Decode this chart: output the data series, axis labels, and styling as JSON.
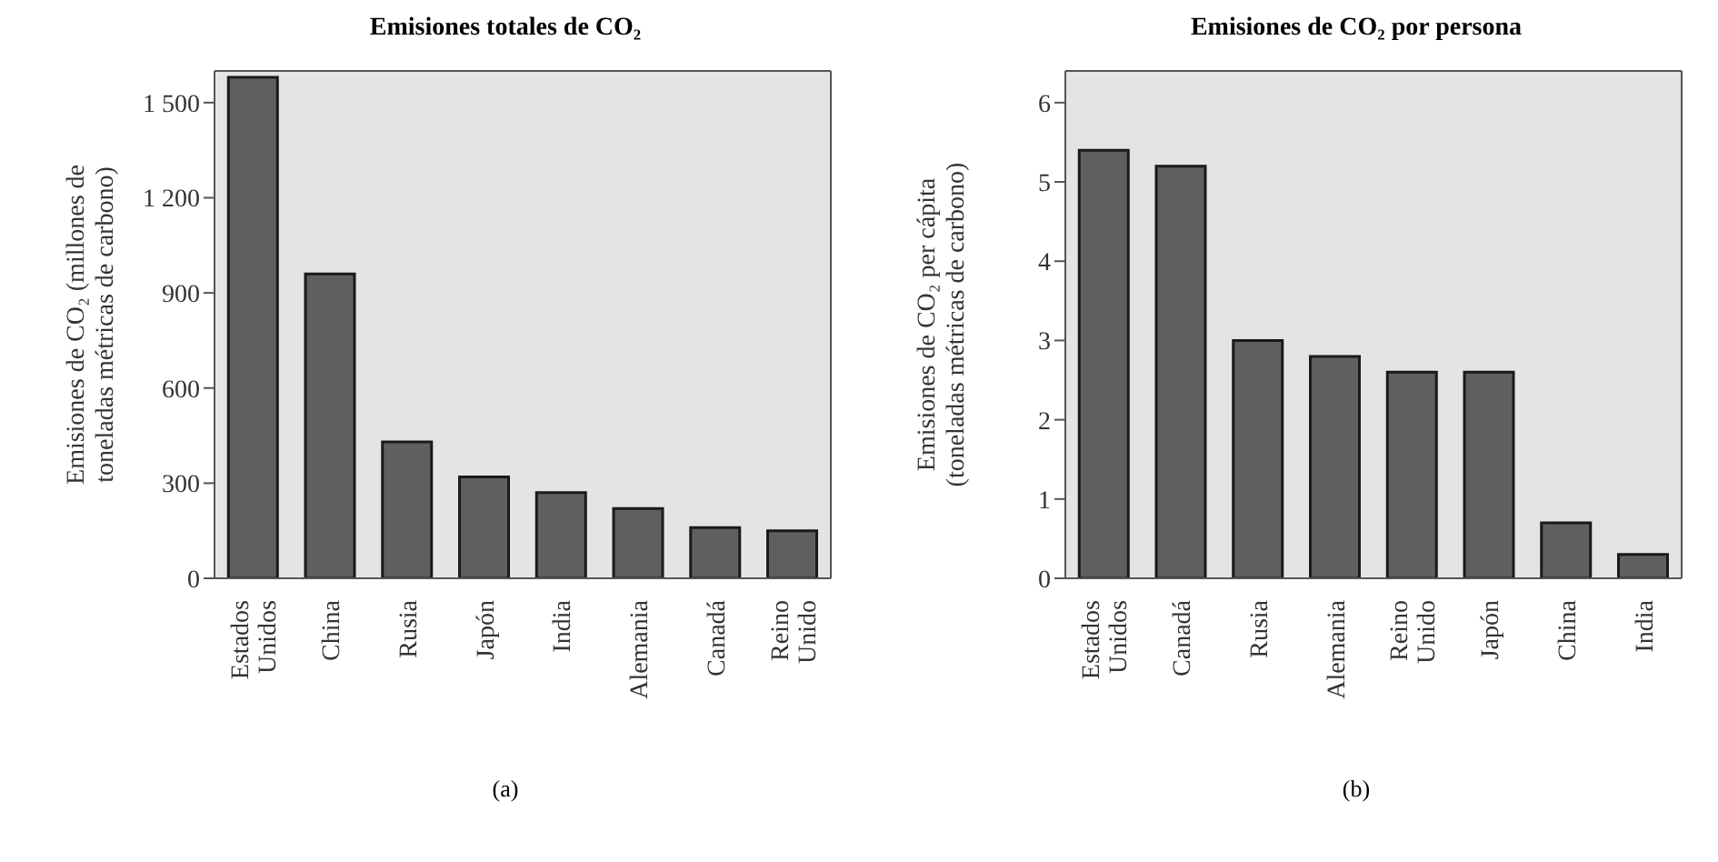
{
  "chart_data": [
    {
      "type": "bar",
      "title": "Emisiones totales de CO₂",
      "ylabel": "Emisiones de CO₂ (millones de toneladas métricas de carbono)",
      "categories": [
        "Estados Unidos",
        "China",
        "Rusia",
        "Japón",
        "India",
        "Alemania",
        "Canadá",
        "Reino Unido"
      ],
      "values": [
        1580,
        960,
        430,
        320,
        270,
        220,
        160,
        150
      ],
      "color": "#5f5f5f",
      "ylim": [
        0,
        1600
      ],
      "yticks": [
        0,
        300,
        600,
        900,
        1200,
        1500
      ],
      "annotations": [
        "(a)"
      ]
    },
    {
      "type": "bar",
      "title": "Emisiones de CO₂ por persona",
      "ylabel": "Emisiones de CO₂ per cápita (toneladas métricas de carbono)",
      "categories": [
        "Estados Unidos",
        "Canadá",
        "Rusia",
        "Alemania",
        "Reino Unido",
        "Japón",
        "China",
        "India"
      ],
      "values": [
        5.4,
        5.2,
        3.0,
        2.8,
        2.6,
        2.6,
        0.7,
        0.3
      ],
      "color": "#5f5f5f",
      "ylim": [
        0,
        6.4
      ],
      "yticks": [
        0,
        1,
        2,
        3,
        4,
        5,
        6
      ],
      "annotations": [
        "(b)"
      ]
    }
  ]
}
